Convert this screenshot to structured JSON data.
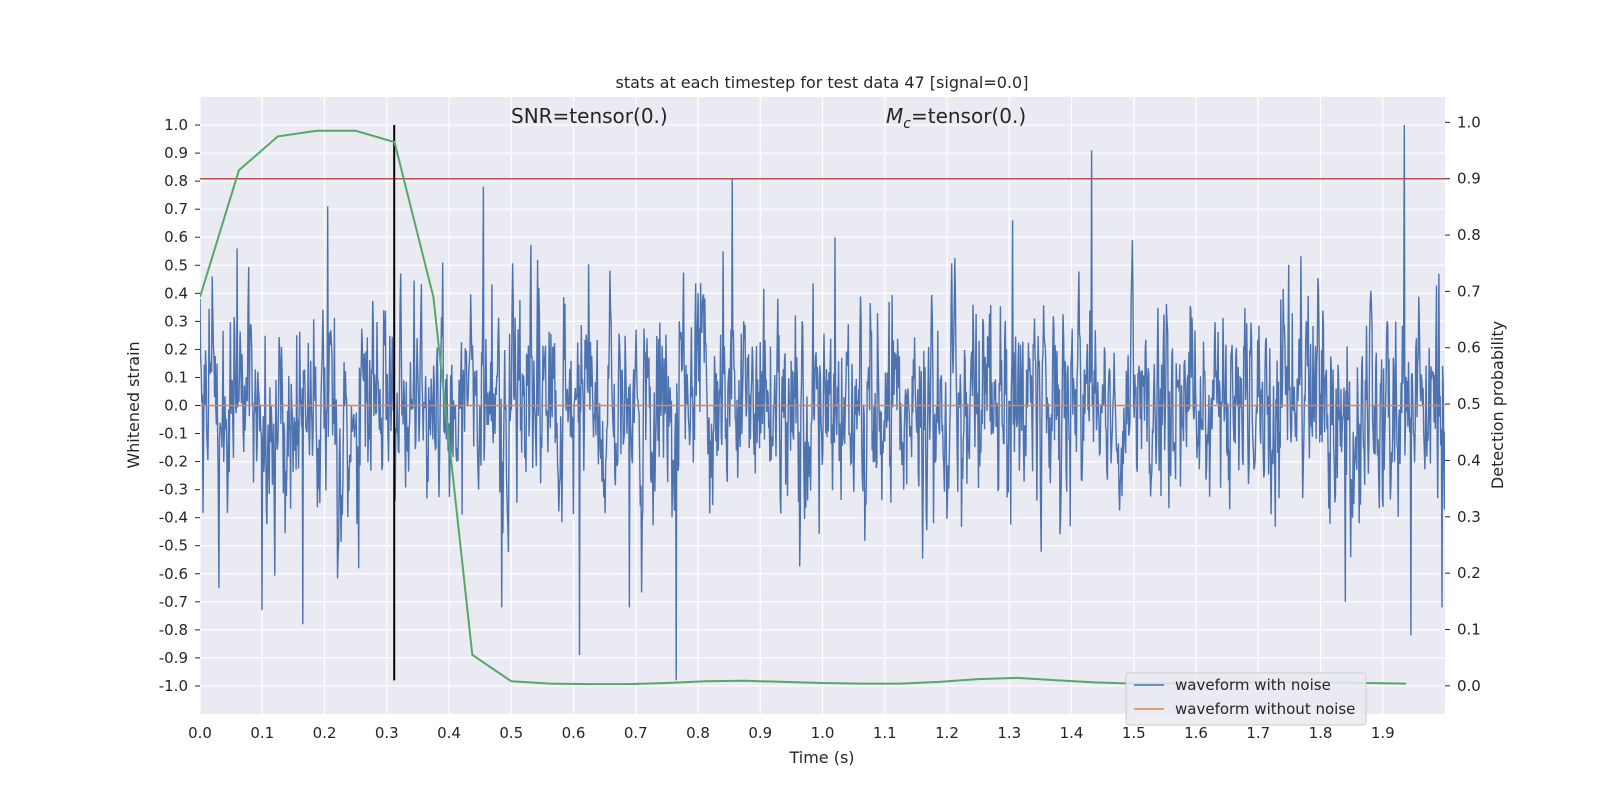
{
  "chart_data": {
    "type": "line",
    "title": "stats at each timestep for test data 47 [signal=0.0]",
    "xlabel": "Time (s)",
    "ylabel": "Whitened strain",
    "y2label": "Detection probability",
    "xlim": [
      0.0,
      2.0
    ],
    "ylim": [
      -1.1,
      1.1
    ],
    "y2lim": [
      -0.05,
      1.045
    ],
    "xticks": [
      "0.0",
      "0.1",
      "0.2",
      "0.3",
      "0.4",
      "0.5",
      "0.6",
      "0.7",
      "0.8",
      "0.9",
      "1.0",
      "1.1",
      "1.2",
      "1.3",
      "1.4",
      "1.5",
      "1.6",
      "1.7",
      "1.8",
      "1.9"
    ],
    "yticks": [
      "1.0",
      "0.9",
      "0.8",
      "0.7",
      "0.6",
      "0.5",
      "0.4",
      "0.3",
      "0.2",
      "0.1",
      "0.0",
      "-0.1",
      "-0.2",
      "-0.3",
      "-0.4",
      "-0.5",
      "-0.6",
      "-0.7",
      "-0.8",
      "-0.9",
      "-1.0"
    ],
    "y2ticks": [
      "1.0",
      "0.9",
      "0.8",
      "0.7",
      "0.6",
      "0.5",
      "0.4",
      "0.3",
      "0.2",
      "0.1",
      "0.0"
    ],
    "annotations": {
      "snr": "SNR=tensor(0.)",
      "mc_symbol": "M",
      "mc_sub": "c",
      "mc_value": "=tensor(0.)"
    },
    "threshold": {
      "axis": "y2",
      "value": 0.9,
      "color": "#c44e52"
    },
    "marker_line": {
      "x": 0.312,
      "ymin": -0.98,
      "ymax": 1.0,
      "color": "#000000"
    },
    "noisy_waveform": {
      "name": "waveform with noise",
      "color": "#4c72b0",
      "samples": 2048,
      "amplitude_std": 0.24,
      "spikes": [
        {
          "t": 0.0,
          "v": 0.38
        },
        {
          "t": 0.02,
          "v": 0.46
        },
        {
          "t": 0.03,
          "v": -0.65
        },
        {
          "t": 0.06,
          "v": 0.56
        },
        {
          "t": 0.1,
          "v": -0.73
        },
        {
          "t": 0.165,
          "v": -0.78
        },
        {
          "t": 0.205,
          "v": 0.71
        },
        {
          "t": 0.255,
          "v": -0.58
        },
        {
          "t": 0.39,
          "v": 0.51
        },
        {
          "t": 0.455,
          "v": 0.78
        },
        {
          "t": 0.485,
          "v": -0.72
        },
        {
          "t": 0.61,
          "v": -0.89
        },
        {
          "t": 0.69,
          "v": -0.72
        },
        {
          "t": 0.765,
          "v": -0.98
        },
        {
          "t": 0.855,
          "v": 0.81
        },
        {
          "t": 1.02,
          "v": 0.6
        },
        {
          "t": 1.305,
          "v": 0.66
        },
        {
          "t": 1.432,
          "v": 0.91
        },
        {
          "t": 1.84,
          "v": -0.7
        },
        {
          "t": 1.935,
          "v": 1.0
        },
        {
          "t": 1.945,
          "v": -0.82
        },
        {
          "t": 1.99,
          "v": 0.47
        },
        {
          "t": 1.995,
          "v": -0.72
        }
      ]
    },
    "clean_waveform": {
      "name": "waveform without noise",
      "color": "#dd8452",
      "values": [
        0.0,
        0.0
      ]
    },
    "detection_probability": {
      "color": "#55a868",
      "x": [
        0.0,
        0.0625,
        0.125,
        0.1875,
        0.25,
        0.3125,
        0.375,
        0.4375,
        0.5,
        0.5625,
        0.625,
        0.6875,
        0.75,
        0.8125,
        0.875,
        0.9375,
        1.0,
        1.0625,
        1.125,
        1.1875,
        1.25,
        1.3125,
        1.375,
        1.4375,
        1.5,
        1.5625,
        1.625,
        1.6875,
        1.75,
        1.8125,
        1.875,
        1.9375
      ],
      "y": [
        0.69,
        0.915,
        0.975,
        0.985,
        0.985,
        0.965,
        0.69,
        0.055,
        0.008,
        0.004,
        0.003,
        0.003,
        0.005,
        0.008,
        0.009,
        0.007,
        0.005,
        0.004,
        0.004,
        0.007,
        0.012,
        0.014,
        0.01,
        0.006,
        0.004,
        0.004,
        0.005,
        0.006,
        0.007,
        0.006,
        0.005,
        0.004
      ]
    },
    "legend": {
      "position": "bottom-right",
      "entries": [
        {
          "label": "waveform with noise",
          "color": "#4c72b0"
        },
        {
          "label": "waveform without noise",
          "color": "#dd8452"
        }
      ]
    },
    "background": "#eaeaf2",
    "grid": true
  }
}
